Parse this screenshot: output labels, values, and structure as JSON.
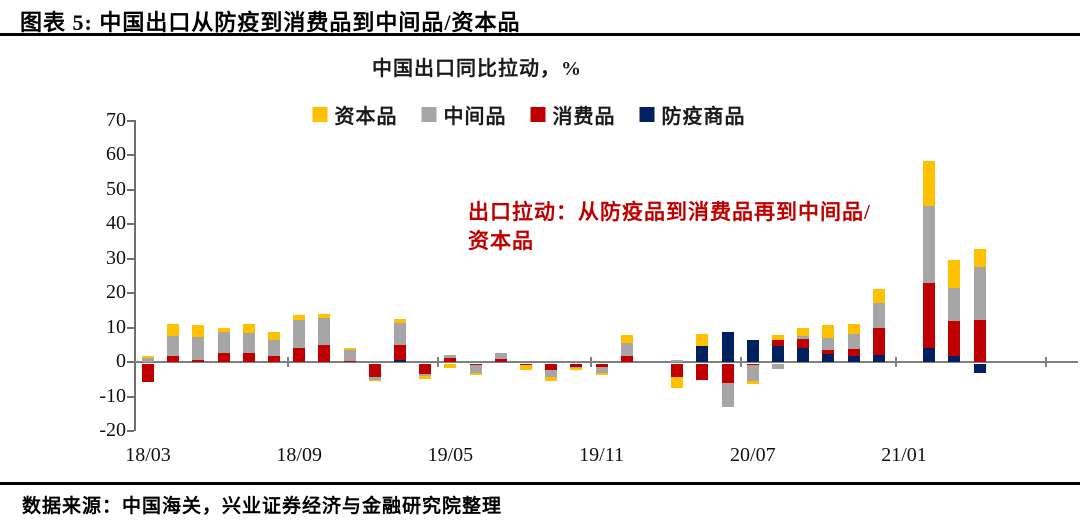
{
  "header": {
    "title": "图表 5: 中国出口从防疫到消费品到中间品/资本品"
  },
  "subtitle": "中国出口同比拉动，%",
  "legend": [
    {
      "name": "capital-goods",
      "label": "资本品",
      "color": "#FFC000"
    },
    {
      "name": "intermediate",
      "label": "中间品",
      "color": "#A6A6A6"
    },
    {
      "name": "consumer-goods",
      "label": "消费品",
      "color": "#C00000"
    },
    {
      "name": "epidemic-goods",
      "label": "防疫商品",
      "color": "#002060"
    }
  ],
  "annotation": {
    "line1": "出口拉动：从防疫品到消费品再到中间品/",
    "line2": "资本品",
    "color": "#C00000"
  },
  "footer": {
    "source": "数据来源：中国海关，兴业证券经济与金融研究院整理"
  },
  "chart_data": {
    "type": "bar",
    "stacked": true,
    "title": "中国出口同比拉动，%",
    "ylim": [
      -20,
      70
    ],
    "yticks": [
      70,
      60,
      50,
      40,
      30,
      20,
      10,
      0,
      -10,
      -20
    ],
    "grid": false,
    "legend_position": "top",
    "x_axis_labels": [
      {
        "label": "18/03",
        "slot": 0
      },
      {
        "label": "18/09",
        "slot": 6
      },
      {
        "label": "19/05",
        "slot": 12
      },
      {
        "label": "19/11",
        "slot": 18
      },
      {
        "label": "20/07",
        "slot": 24
      },
      {
        "label": "21/01",
        "slot": 30
      }
    ],
    "series": [
      {
        "name": "防疫商品",
        "color": "#002060"
      },
      {
        "name": "消费品",
        "color": "#C00000"
      },
      {
        "name": "中间品",
        "color": "#A6A6A6"
      },
      {
        "name": "资本品",
        "color": "#FFC000"
      }
    ],
    "bars": [
      [
        0,
        -5.2,
        1.2,
        0.4
      ],
      [
        0,
        1.7,
        5.8,
        3.5
      ],
      [
        0,
        0.5,
        6.7,
        3.5
      ],
      [
        0,
        2.5,
        6.3,
        1.2
      ],
      [
        0,
        2.5,
        5.9,
        2.5
      ],
      [
        0,
        1.8,
        4.7,
        2.1
      ],
      [
        0,
        4.0,
        8.2,
        1.4
      ],
      [
        0,
        4.9,
        7.8,
        1.2
      ],
      [
        0,
        0.3,
        3.2,
        0.5
      ],
      [
        0,
        -3.9,
        -0.8,
        -0.3
      ],
      [
        0.5,
        4.4,
        6.3,
        1.4
      ],
      [
        0,
        -3.0,
        -0.5,
        -0.9
      ],
      [
        0,
        1.3,
        0.6,
        -1.2
      ],
      [
        0,
        -0.3,
        -2.4,
        -0.4
      ],
      [
        0,
        1.0,
        1.5,
        0
      ],
      [
        0,
        -0.2,
        0,
        -1.4
      ],
      [
        0,
        -1.6,
        -2.2,
        -1.0
      ],
      [
        0,
        -1.0,
        -0.3,
        -0.5
      ],
      [
        0,
        -1.0,
        -1.6,
        -0.5
      ],
      [
        0,
        1.7,
        3.9,
        2.2
      ],
      [
        0,
        0,
        0,
        0
      ],
      [
        0,
        -3.8,
        0.5,
        -3.2
      ],
      [
        4.6,
        -4.7,
        0,
        3.4
      ],
      [
        8.7,
        -5.4,
        -7.1,
        0
      ],
      [
        6.4,
        -0.3,
        -4.7,
        -0.7
      ],
      [
        4.5,
        1.8,
        -1.4,
        1.6
      ],
      [
        4.0,
        2.8,
        0.8,
        2.2
      ],
      [
        2.2,
        1.3,
        3.5,
        3.7
      ],
      [
        1.7,
        2.2,
        4.1,
        3.1
      ],
      [
        1.9,
        8.0,
        7.3,
        4.1
      ],
      [
        0,
        0,
        0,
        0
      ],
      [
        4.1,
        18.9,
        22.2,
        13.1
      ],
      [
        1.7,
        10.2,
        9.6,
        8.0
      ],
      [
        -2.6,
        12.1,
        15.5,
        5.1
      ]
    ]
  }
}
